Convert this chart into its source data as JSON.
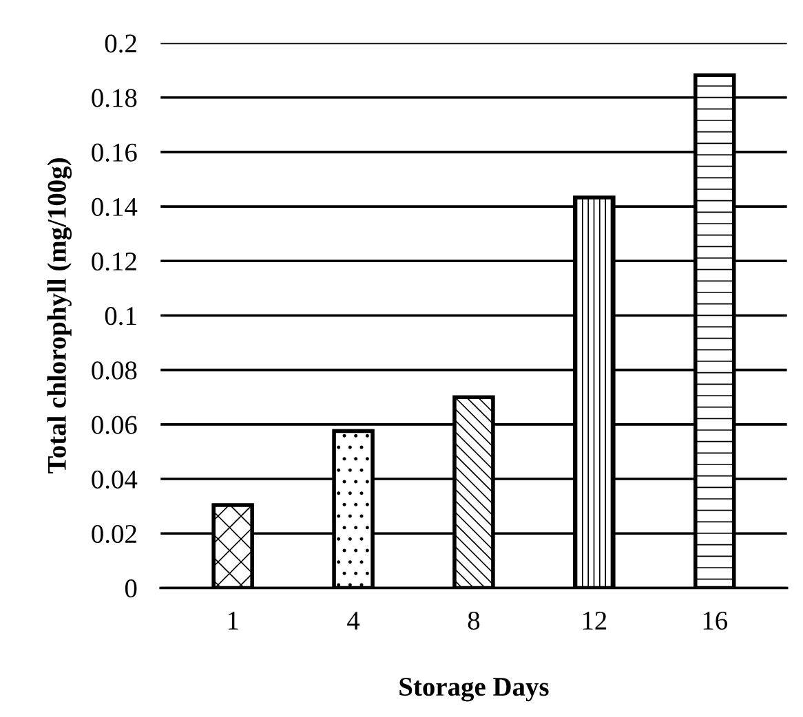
{
  "chart_data": {
    "type": "bar",
    "xlabel": "Storage Days",
    "ylabel": "Total chlorophyll (mg/100g)",
    "categories": [
      "1",
      "4",
      "8",
      "12",
      "16"
    ],
    "values": [
      0.0304,
      0.0576,
      0.07,
      0.1433,
      0.1882
    ],
    "colors": [
      "#000000",
      "#000000",
      "#000000",
      "#000000",
      "#000000"
    ],
    "ylim": [
      0,
      0.2
    ],
    "yticks": [
      {
        "value": 0,
        "label": "0"
      },
      {
        "value": 0.02,
        "label": "0.02"
      },
      {
        "value": 0.04,
        "label": "0.04"
      },
      {
        "value": 0.06,
        "label": "0.06"
      },
      {
        "value": 0.08,
        "label": "0.08"
      },
      {
        "value": 0.1,
        "label": "0.1"
      },
      {
        "value": 0.12,
        "label": "0.12"
      },
      {
        "value": 0.14,
        "label": "0.14"
      },
      {
        "value": 0.16,
        "label": "0.16"
      },
      {
        "value": 0.18,
        "label": "0.18"
      },
      {
        "value": 0.2,
        "label": "0.2"
      }
    ],
    "grid": "y",
    "legend": false
  }
}
